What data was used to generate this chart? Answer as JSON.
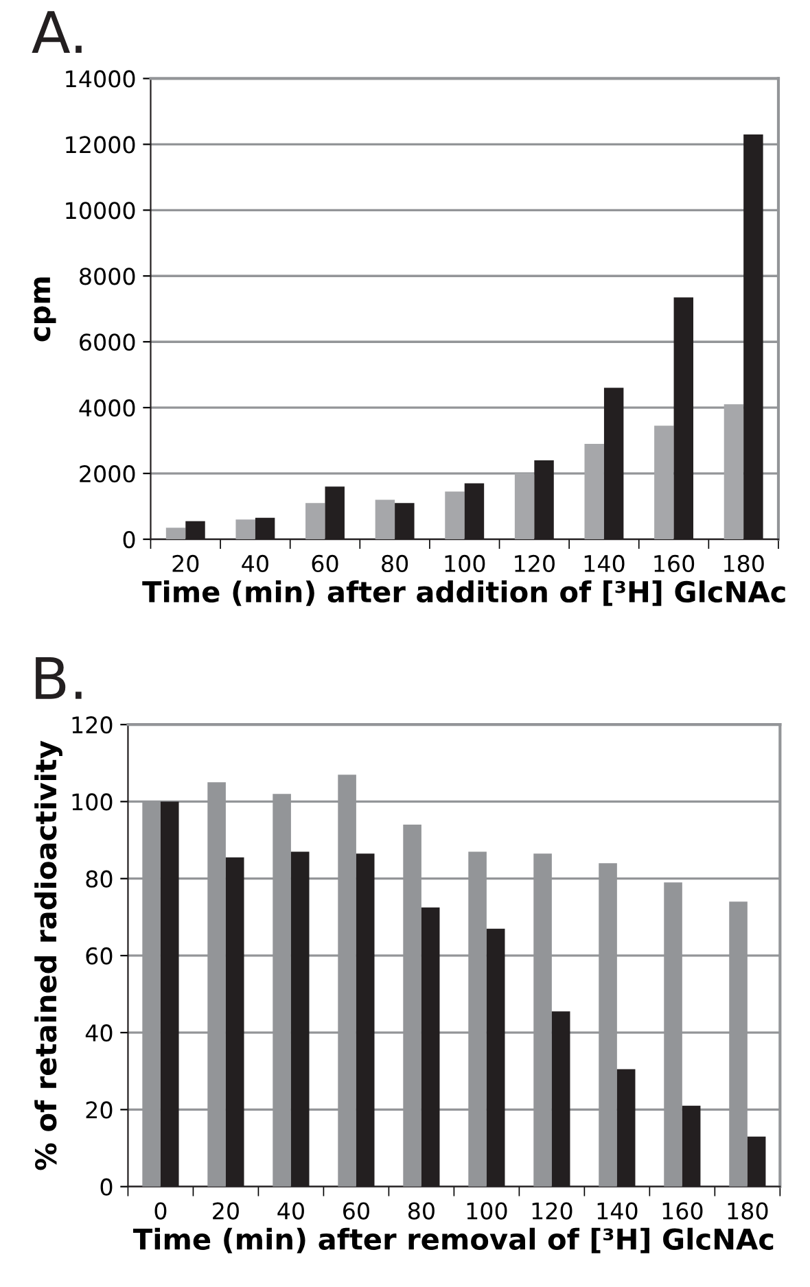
{
  "chart_data": [
    {
      "type": "bar",
      "title": "A.",
      "xlabel": "Time (min) after addition of [³H] GlcNAc",
      "ylabel": "cpm",
      "categories": [
        "20",
        "40",
        "60",
        "80",
        "100",
        "120",
        "140",
        "160",
        "180"
      ],
      "series": [
        {
          "color": "#a6a7aa",
          "values": [
            350,
            600,
            1100,
            1200,
            1450,
            2000,
            2900,
            3450,
            4100
          ]
        },
        {
          "color": "#231f20",
          "values": [
            550,
            650,
            1600,
            1100,
            1700,
            2400,
            4600,
            7350,
            12300
          ]
        }
      ],
      "ylim": [
        0,
        14000
      ],
      "yticks": [
        0,
        2000,
        4000,
        6000,
        8000,
        10000,
        12000,
        14000
      ],
      "grid": "y"
    },
    {
      "type": "bar",
      "title": "B.",
      "xlabel": "Time (min) after removal of [³H] GlcNAc",
      "ylabel": "% of retained radioactivity",
      "categories": [
        "0",
        "20",
        "40",
        "60",
        "80",
        "100",
        "120",
        "140",
        "160",
        "180"
      ],
      "series": [
        {
          "color": "#939598",
          "values": [
            100,
            105,
            102,
            107,
            94,
            87,
            86.5,
            84,
            79,
            74
          ]
        },
        {
          "color": "#231f20",
          "values": [
            100,
            85.5,
            87,
            86.5,
            72.5,
            67,
            45.5,
            30.5,
            21,
            13
          ]
        }
      ],
      "ylim": [
        0,
        120
      ],
      "yticks": [
        0,
        20,
        40,
        60,
        80,
        100,
        120
      ],
      "grid": "y"
    }
  ]
}
